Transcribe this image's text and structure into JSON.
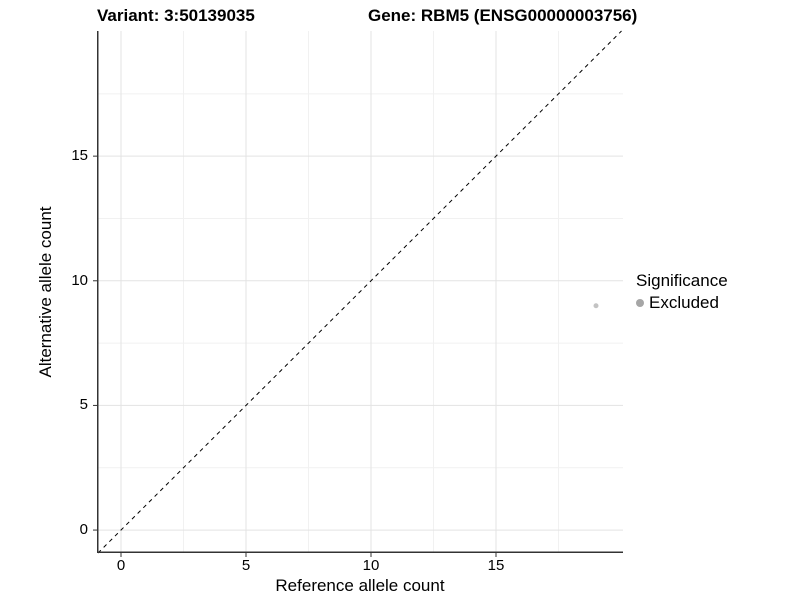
{
  "title": {
    "variant": "Variant: 3:50139035",
    "gene": "Gene: RBM5 (ENSG00000003756)"
  },
  "chart_data": {
    "type": "scatter",
    "xlabel": "Reference allele count",
    "ylabel": "Alternative allele count",
    "xlim": [
      -0.96,
      20.08
    ],
    "ylim": [
      -0.92,
      20.02
    ],
    "x_ticks": [
      0,
      5,
      10,
      15
    ],
    "y_ticks": [
      0,
      5,
      10,
      15
    ],
    "x_minor_ticks": [
      2.5,
      7.5,
      12.5,
      17.5
    ],
    "y_minor_ticks": [
      2.5,
      7.5,
      12.5,
      17.5
    ],
    "grid": true,
    "points": [
      {
        "x": 19,
        "y": 9,
        "series": "Excluded"
      }
    ],
    "reference_line": {
      "kind": "identity y=x",
      "linetype": "dashed"
    },
    "legend": {
      "title": "Significance",
      "position": "right",
      "items": [
        {
          "label": "Excluded",
          "color": "#a6a6a6"
        }
      ]
    }
  },
  "colors": {
    "background": "#ffffff",
    "grid_major": "#e3e3e3",
    "grid_minor": "#f1f1f1",
    "axis_line": "#333333",
    "tick_mark": "#333333",
    "diagonal_line": "#000000",
    "data_point": "#c3c3c3",
    "legend_key": "#a6a6a6",
    "text": "#000000"
  }
}
